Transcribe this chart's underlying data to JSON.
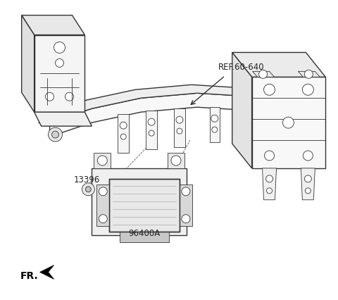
{
  "background_color": "#ffffff",
  "line_color": "#333333",
  "lw_main": 1.0,
  "lw_thin": 0.6,
  "labels": {
    "ref": "REF.60-640",
    "part1_num": "13396",
    "part2_num": "96400A",
    "fr_label": "FR."
  },
  "fig_width": 4.8,
  "fig_height": 4.27,
  "dpi": 100
}
